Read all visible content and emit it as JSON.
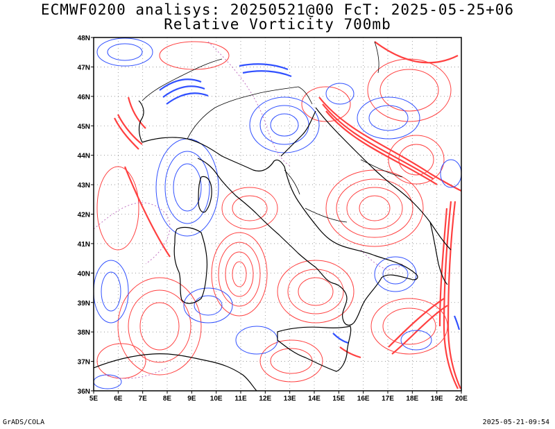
{
  "header": {
    "title_line1": "ECMWF0200 analisys: 20250521@00 FcT: 2025-05-25+06",
    "title_line2": "Relative Vorticity 700mb"
  },
  "footer": {
    "left": "GrADS/COLA",
    "right": "2025-05-21-09:54"
  },
  "map": {
    "lon_range": [
      5,
      20
    ],
    "lat_range": [
      36,
      48
    ],
    "lon_labels": [
      "5E",
      "6E",
      "7E",
      "8E",
      "9E",
      "10E",
      "11E",
      "12E",
      "13E",
      "14E",
      "15E",
      "16E",
      "17E",
      "18E",
      "19E",
      "20E"
    ],
    "lat_labels": [
      "36N",
      "37N",
      "38N",
      "39N",
      "40N",
      "41N",
      "42N",
      "43N",
      "44N",
      "45N",
      "46N",
      "47N",
      "48N"
    ],
    "colors": {
      "positive_contour": "#ff4040",
      "negative_contour": "#3050ff",
      "zero_contour": "#c070c0",
      "coastline": "#000000",
      "grid": "#888888"
    }
  }
}
